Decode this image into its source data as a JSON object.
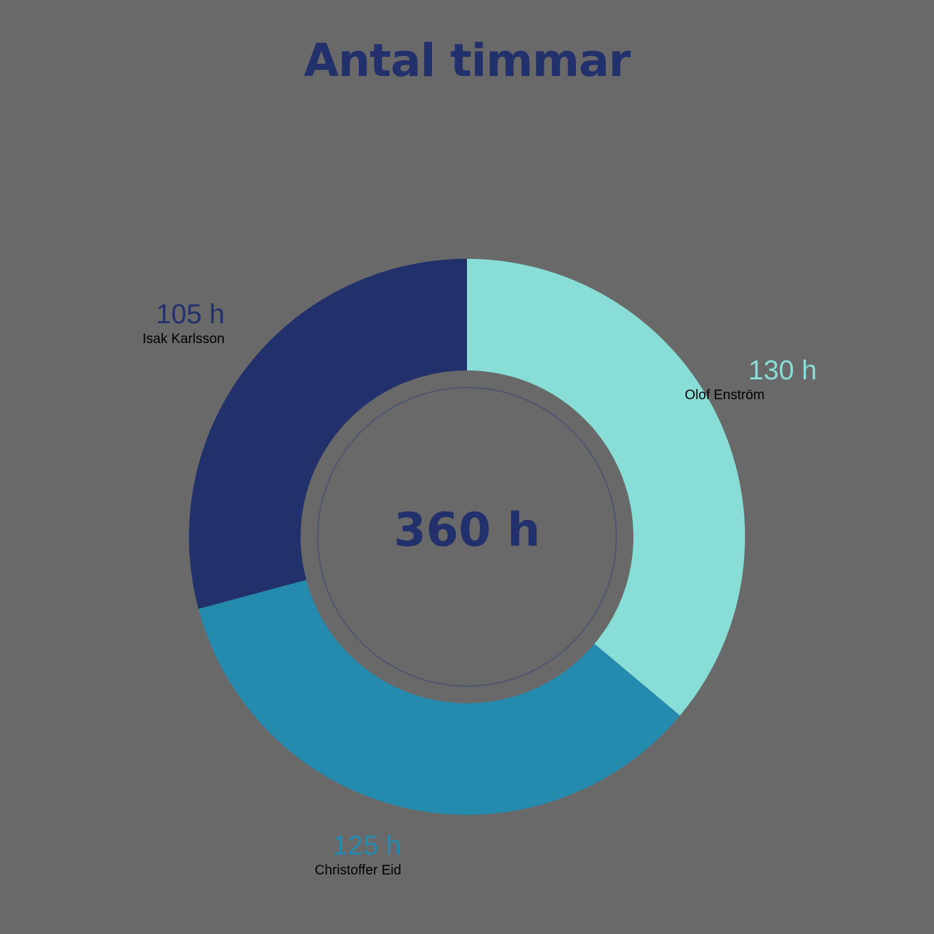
{
  "chart_data": {
    "type": "pie",
    "variant": "donut",
    "title": "Antal timmar",
    "total_label": "360 h",
    "total": 360,
    "unit": "h",
    "slices": [
      {
        "name": "Olof Enström",
        "value": 130,
        "value_label": "130 h",
        "color": "#88ded6"
      },
      {
        "name": "Christoffer Eid",
        "value": 125,
        "value_label": "125 h",
        "color": "#248aae"
      },
      {
        "name": "Isak Karlsson",
        "value": 105,
        "value_label": "105 h",
        "color": "#22306c"
      }
    ],
    "legend": "none",
    "grid": false
  },
  "colors": {
    "background": "#696969",
    "title": "#22306c",
    "inner_ring": "#4f5670"
  }
}
